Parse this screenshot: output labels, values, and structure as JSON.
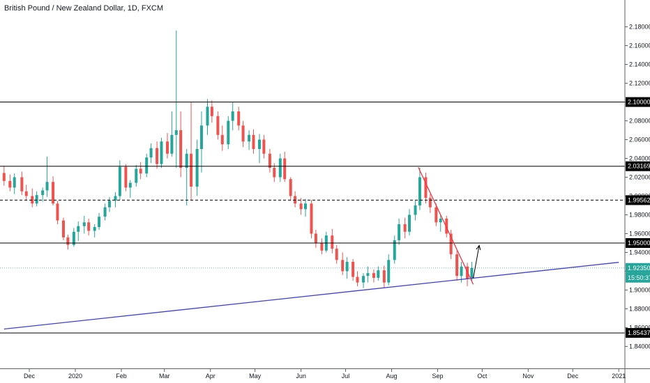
{
  "title": "British Pound / New Zealand Dollar, 1D, FXCM",
  "colors": {
    "up": "#26a69a",
    "down": "#ef5350",
    "level_line": "#000000",
    "trendline_down": "#f23645",
    "trendline_support": "#3f3fd0",
    "arrow": "#000000",
    "price_line": "#26a69a"
  },
  "chart_data": {
    "type": "candlestick",
    "title": "British Pound / New Zealand Dollar, 1D, FXCM",
    "ylim": [
      1.83,
      2.19
    ],
    "y_ticks": [
      "2.18000",
      "2.16000",
      "2.14000",
      "2.12000",
      "2.10000",
      "2.08000",
      "2.06000",
      "2.04000",
      "2.02000",
      "2.00000",
      "1.98000",
      "1.96000",
      "1.94000",
      "1.92000",
      "1.90000",
      "1.88000",
      "1.86000",
      "1.84000"
    ],
    "x_ticks": [
      "Dec",
      "2020",
      "Feb",
      "Mar",
      "Apr",
      "May",
      "Jun",
      "Jul",
      "Aug",
      "Sep",
      "Oct",
      "Nov",
      "Dec",
      "2021"
    ],
    "horizontal_levels": [
      {
        "label": "2.10000",
        "value": 2.1,
        "style": "solid"
      },
      {
        "label": "2.03169",
        "value": 2.03169,
        "style": "solid"
      },
      {
        "label": "1.99562",
        "value": 1.99562,
        "style": "dashed"
      },
      {
        "label": "1.95000",
        "value": 1.95,
        "style": "solid"
      },
      {
        "label": "1.85437",
        "value": 1.85437,
        "style": "solid"
      }
    ],
    "last_price": {
      "label": "1.92350",
      "value": 1.9235
    },
    "countdown": "15:50:37",
    "trendlines": [
      {
        "name": "support",
        "from": {
          "x": "2019-11-14",
          "y": 1.8585
        },
        "to": {
          "x": "2021-01-01",
          "y": 1.9295
        }
      },
      {
        "name": "resistance",
        "from": {
          "x": "2020-08-19",
          "y": 2.0305
        },
        "to": {
          "x": "2020-09-25",
          "y": 1.906
        }
      }
    ],
    "projection_arrow": {
      "from": {
        "x": "2020-09-25",
        "y": 1.9125
      },
      "to": {
        "x": "2020-09-29",
        "y": 1.9475
      }
    },
    "candles": [
      {
        "d": "2019-11-14",
        "o": 2.0245,
        "h": 2.032,
        "l": 2.011,
        "c": 2.016
      },
      {
        "d": "2019-11-18",
        "o": 2.016,
        "h": 2.023,
        "l": 2.005,
        "c": 2.009
      },
      {
        "d": "2019-11-21",
        "o": 2.009,
        "h": 2.024,
        "l": 2.002,
        "c": 2.02
      },
      {
        "d": "2019-11-26",
        "o": 2.02,
        "h": 2.026,
        "l": 2.001,
        "c": 2.005
      },
      {
        "d": "2019-11-29",
        "o": 2.005,
        "h": 2.012,
        "l": 1.995,
        "c": 2.0
      },
      {
        "d": "2019-12-03",
        "o": 2.0,
        "h": 2.008,
        "l": 1.988,
        "c": 1.992
      },
      {
        "d": "2019-12-06",
        "o": 1.992,
        "h": 2.005,
        "l": 1.989,
        "c": 2.001
      },
      {
        "d": "2019-12-10",
        "o": 2.001,
        "h": 2.009,
        "l": 1.994,
        "c": 2.006
      },
      {
        "d": "2019-12-13",
        "o": 2.006,
        "h": 2.042,
        "l": 1.999,
        "c": 2.015
      },
      {
        "d": "2019-12-17",
        "o": 2.015,
        "h": 2.021,
        "l": 1.99,
        "c": 1.992
      },
      {
        "d": "2019-12-20",
        "o": 1.992,
        "h": 1.995,
        "l": 1.97,
        "c": 1.974
      },
      {
        "d": "2019-12-24",
        "o": 1.974,
        "h": 1.977,
        "l": 1.953,
        "c": 1.956
      },
      {
        "d": "2019-12-27",
        "o": 1.956,
        "h": 1.959,
        "l": 1.943,
        "c": 1.948
      },
      {
        "d": "2019-12-31",
        "o": 1.948,
        "h": 1.966,
        "l": 1.946,
        "c": 1.962
      },
      {
        "d": "2020-01-03",
        "o": 1.962,
        "h": 1.973,
        "l": 1.952,
        "c": 1.968
      },
      {
        "d": "2020-01-07",
        "o": 1.968,
        "h": 1.979,
        "l": 1.96,
        "c": 1.972
      },
      {
        "d": "2020-01-10",
        "o": 1.972,
        "h": 1.976,
        "l": 1.958,
        "c": 1.963
      },
      {
        "d": "2020-01-14",
        "o": 1.963,
        "h": 1.97,
        "l": 1.956,
        "c": 1.967
      },
      {
        "d": "2020-01-17",
        "o": 1.967,
        "h": 1.982,
        "l": 1.964,
        "c": 1.978
      },
      {
        "d": "2020-01-21",
        "o": 1.978,
        "h": 1.992,
        "l": 1.974,
        "c": 1.988
      },
      {
        "d": "2020-01-24",
        "o": 1.988,
        "h": 1.999,
        "l": 1.983,
        "c": 1.995
      },
      {
        "d": "2020-01-28",
        "o": 1.995,
        "h": 2.004,
        "l": 1.988,
        "c": 2.0
      },
      {
        "d": "2020-01-31",
        "o": 2.0,
        "h": 2.038,
        "l": 1.996,
        "c": 2.031
      },
      {
        "d": "2020-02-04",
        "o": 2.031,
        "h": 2.034,
        "l": 2.005,
        "c": 2.009
      },
      {
        "d": "2020-02-07",
        "o": 2.009,
        "h": 2.017,
        "l": 1.998,
        "c": 2.014
      },
      {
        "d": "2020-02-11",
        "o": 2.014,
        "h": 2.033,
        "l": 2.01,
        "c": 2.029
      },
      {
        "d": "2020-02-14",
        "o": 2.029,
        "h": 2.036,
        "l": 2.018,
        "c": 2.024
      },
      {
        "d": "2020-02-18",
        "o": 2.024,
        "h": 2.045,
        "l": 2.02,
        "c": 2.041
      },
      {
        "d": "2020-02-21",
        "o": 2.041,
        "h": 2.056,
        "l": 2.035,
        "c": 2.051
      },
      {
        "d": "2020-02-25",
        "o": 2.051,
        "h": 2.058,
        "l": 2.029,
        "c": 2.034
      },
      {
        "d": "2020-02-28",
        "o": 2.034,
        "h": 2.062,
        "l": 2.03,
        "c": 2.058
      },
      {
        "d": "2020-03-03",
        "o": 2.058,
        "h": 2.067,
        "l": 2.04,
        "c": 2.045
      },
      {
        "d": "2020-03-06",
        "o": 2.045,
        "h": 2.09,
        "l": 2.042,
        "c": 2.065
      },
      {
        "d": "2020-03-09",
        "o": 2.065,
        "h": 2.176,
        "l": 2.03,
        "c": 2.07
      },
      {
        "d": "2020-03-12",
        "o": 2.07,
        "h": 2.09,
        "l": 2.02,
        "c": 2.03
      },
      {
        "d": "2020-03-16",
        "o": 2.03,
        "h": 2.05,
        "l": 1.99,
        "c": 2.045
      },
      {
        "d": "2020-03-19",
        "o": 2.045,
        "h": 2.1,
        "l": 1.995,
        "c": 2.01
      },
      {
        "d": "2020-03-23",
        "o": 2.01,
        "h": 2.06,
        "l": 2.0,
        "c": 2.05
      },
      {
        "d": "2020-03-26",
        "o": 2.05,
        "h": 2.09,
        "l": 2.025,
        "c": 2.075
      },
      {
        "d": "2020-03-30",
        "o": 2.075,
        "h": 2.103,
        "l": 2.065,
        "c": 2.095
      },
      {
        "d": "2020-04-02",
        "o": 2.095,
        "h": 2.102,
        "l": 2.078,
        "c": 2.085
      },
      {
        "d": "2020-04-06",
        "o": 2.085,
        "h": 2.09,
        "l": 2.06,
        "c": 2.065
      },
      {
        "d": "2020-04-09",
        "o": 2.065,
        "h": 2.075,
        "l": 2.048,
        "c": 2.055
      },
      {
        "d": "2020-04-13",
        "o": 2.055,
        "h": 2.085,
        "l": 2.05,
        "c": 2.08
      },
      {
        "d": "2020-04-16",
        "o": 2.08,
        "h": 2.1,
        "l": 2.07,
        "c": 2.09
      },
      {
        "d": "2020-04-20",
        "o": 2.09,
        "h": 2.095,
        "l": 2.07,
        "c": 2.075
      },
      {
        "d": "2020-04-23",
        "o": 2.075,
        "h": 2.08,
        "l": 2.052,
        "c": 2.058
      },
      {
        "d": "2020-04-27",
        "o": 2.058,
        "h": 2.07,
        "l": 2.049,
        "c": 2.065
      },
      {
        "d": "2020-04-30",
        "o": 2.065,
        "h": 2.071,
        "l": 2.045,
        "c": 2.05
      },
      {
        "d": "2020-05-04",
        "o": 2.05,
        "h": 2.066,
        "l": 2.035,
        "c": 2.06
      },
      {
        "d": "2020-05-07",
        "o": 2.06,
        "h": 2.065,
        "l": 2.04,
        "c": 2.045
      },
      {
        "d": "2020-05-11",
        "o": 2.045,
        "h": 2.05,
        "l": 2.025,
        "c": 2.03
      },
      {
        "d": "2020-05-14",
        "o": 2.03,
        "h": 2.035,
        "l": 2.015,
        "c": 2.02
      },
      {
        "d": "2020-05-18",
        "o": 2.02,
        "h": 2.045,
        "l": 2.015,
        "c": 2.04
      },
      {
        "d": "2020-05-21",
        "o": 2.04,
        "h": 2.047,
        "l": 2.015,
        "c": 2.018
      },
      {
        "d": "2020-05-25",
        "o": 2.018,
        "h": 2.02,
        "l": 1.995,
        "c": 2.0
      },
      {
        "d": "2020-05-28",
        "o": 2.0,
        "h": 2.005,
        "l": 1.988,
        "c": 1.992
      },
      {
        "d": "2020-06-01",
        "o": 1.992,
        "h": 1.998,
        "l": 1.98,
        "c": 1.986
      },
      {
        "d": "2020-06-04",
        "o": 1.986,
        "h": 1.997,
        "l": 1.978,
        "c": 1.992
      },
      {
        "d": "2020-06-08",
        "o": 1.992,
        "h": 1.996,
        "l": 1.955,
        "c": 1.96
      },
      {
        "d": "2020-06-11",
        "o": 1.96,
        "h": 1.964,
        "l": 1.945,
        "c": 1.95
      },
      {
        "d": "2020-06-15",
        "o": 1.95,
        "h": 1.955,
        "l": 1.938,
        "c": 1.942
      },
      {
        "d": "2020-06-18",
        "o": 1.942,
        "h": 1.962,
        "l": 1.94,
        "c": 1.958
      },
      {
        "d": "2020-06-22",
        "o": 1.958,
        "h": 1.965,
        "l": 1.939,
        "c": 1.944
      },
      {
        "d": "2020-06-25",
        "o": 1.944,
        "h": 1.948,
        "l": 1.928,
        "c": 1.932
      },
      {
        "d": "2020-06-29",
        "o": 1.932,
        "h": 1.94,
        "l": 1.916,
        "c": 1.92
      },
      {
        "d": "2020-07-02",
        "o": 1.92,
        "h": 1.935,
        "l": 1.912,
        "c": 1.93
      },
      {
        "d": "2020-07-06",
        "o": 1.93,
        "h": 1.933,
        "l": 1.91,
        "c": 1.914
      },
      {
        "d": "2020-07-09",
        "o": 1.914,
        "h": 1.92,
        "l": 1.904,
        "c": 1.908
      },
      {
        "d": "2020-07-13",
        "o": 1.908,
        "h": 1.918,
        "l": 1.902,
        "c": 1.915
      },
      {
        "d": "2020-07-16",
        "o": 1.915,
        "h": 1.925,
        "l": 1.908,
        "c": 1.918
      },
      {
        "d": "2020-07-20",
        "o": 1.918,
        "h": 1.922,
        "l": 1.908,
        "c": 1.913
      },
      {
        "d": "2020-07-23",
        "o": 1.913,
        "h": 1.925,
        "l": 1.91,
        "c": 1.921
      },
      {
        "d": "2020-07-27",
        "o": 1.921,
        "h": 1.926,
        "l": 1.902,
        "c": 1.908
      },
      {
        "d": "2020-07-30",
        "o": 1.908,
        "h": 1.938,
        "l": 1.905,
        "c": 1.932
      },
      {
        "d": "2020-08-03",
        "o": 1.932,
        "h": 1.958,
        "l": 1.928,
        "c": 1.953
      },
      {
        "d": "2020-08-06",
        "o": 1.953,
        "h": 1.976,
        "l": 1.948,
        "c": 1.97
      },
      {
        "d": "2020-08-10",
        "o": 1.97,
        "h": 1.977,
        "l": 1.955,
        "c": 1.962
      },
      {
        "d": "2020-08-13",
        "o": 1.962,
        "h": 1.986,
        "l": 1.958,
        "c": 1.98
      },
      {
        "d": "2020-08-17",
        "o": 1.98,
        "h": 1.995,
        "l": 1.974,
        "c": 1.99
      },
      {
        "d": "2020-08-20",
        "o": 1.99,
        "h": 2.03,
        "l": 1.985,
        "c": 2.02
      },
      {
        "d": "2020-08-24",
        "o": 2.02,
        "h": 2.025,
        "l": 1.992,
        "c": 1.998
      },
      {
        "d": "2020-08-27",
        "o": 1.998,
        "h": 2.002,
        "l": 1.982,
        "c": 1.988
      },
      {
        "d": "2020-08-31",
        "o": 1.988,
        "h": 1.992,
        "l": 1.968,
        "c": 1.972
      },
      {
        "d": "2020-09-03",
        "o": 1.972,
        "h": 1.98,
        "l": 1.962,
        "c": 1.976
      },
      {
        "d": "2020-09-07",
        "o": 1.976,
        "h": 1.979,
        "l": 1.956,
        "c": 1.96
      },
      {
        "d": "2020-09-10",
        "o": 1.96,
        "h": 1.964,
        "l": 1.933,
        "c": 1.938
      },
      {
        "d": "2020-09-14",
        "o": 1.938,
        "h": 1.942,
        "l": 1.91,
        "c": 1.915
      },
      {
        "d": "2020-09-17",
        "o": 1.915,
        "h": 1.93,
        "l": 1.908,
        "c": 1.925
      },
      {
        "d": "2020-09-21",
        "o": 1.925,
        "h": 1.929,
        "l": 1.904,
        "c": 1.912
      },
      {
        "d": "2020-09-24",
        "o": 1.912,
        "h": 1.93,
        "l": 1.91,
        "c": 1.9235
      }
    ]
  }
}
